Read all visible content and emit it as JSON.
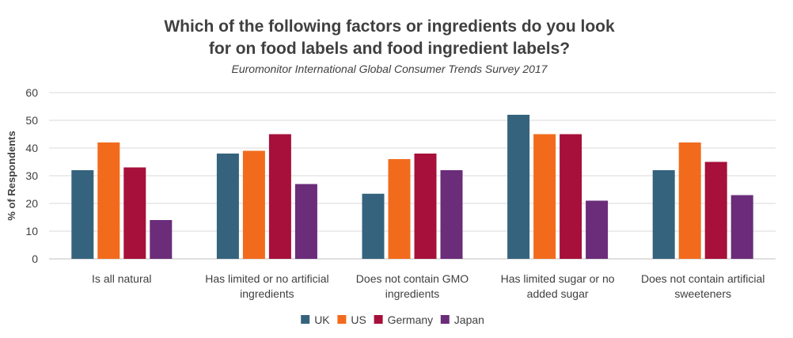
{
  "chart_data": {
    "type": "bar",
    "title_lines": [
      "Which of the following factors or ingredients do you look",
      "for on food labels and food ingredient labels?"
    ],
    "subtitle": "Euromonitor International Global Consumer Trends Survey 2017",
    "xlabel": "",
    "ylabel": "% of Respondents",
    "ylim": [
      0,
      60
    ],
    "yticks": [
      0,
      10,
      20,
      30,
      40,
      50,
      60
    ],
    "grid": true,
    "legend_position": "bottom",
    "categories": [
      [
        "Is all natural"
      ],
      [
        "Has limited or no artificial",
        "ingredients"
      ],
      [
        "Does not contain GMO",
        "ingredients"
      ],
      [
        "Has limited sugar or no",
        "added sugar"
      ],
      [
        "Does not contain artificial",
        "sweeteners"
      ]
    ],
    "series": [
      {
        "name": "UK",
        "color": "#35637E",
        "values": [
          32,
          38,
          23.5,
          52,
          32
        ]
      },
      {
        "name": "US",
        "color": "#F26B1D",
        "values": [
          42,
          39,
          36,
          45,
          42
        ]
      },
      {
        "name": "Germany",
        "color": "#A6103A",
        "values": [
          33,
          45,
          38,
          45,
          35
        ]
      },
      {
        "name": "Japan",
        "color": "#6B2C7A",
        "values": [
          14,
          27,
          32,
          21,
          23
        ]
      }
    ]
  }
}
